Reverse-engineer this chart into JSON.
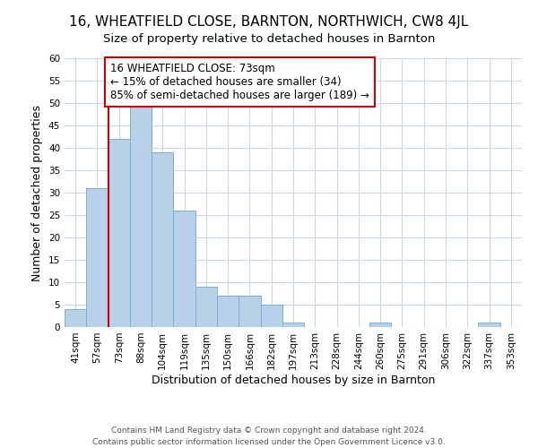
{
  "title": "16, WHEATFIELD CLOSE, BARNTON, NORTHWICH, CW8 4JL",
  "subtitle": "Size of property relative to detached houses in Barnton",
  "xlabel": "Distribution of detached houses by size in Barnton",
  "ylabel": "Number of detached properties",
  "footer_line1": "Contains HM Land Registry data © Crown copyright and database right 2024.",
  "footer_line2": "Contains public sector information licensed under the Open Government Licence v3.0.",
  "bin_labels": [
    "41sqm",
    "57sqm",
    "73sqm",
    "88sqm",
    "104sqm",
    "119sqm",
    "135sqm",
    "150sqm",
    "166sqm",
    "182sqm",
    "197sqm",
    "213sqm",
    "228sqm",
    "244sqm",
    "260sqm",
    "275sqm",
    "291sqm",
    "306sqm",
    "322sqm",
    "337sqm",
    "353sqm"
  ],
  "bar_heights": [
    4,
    31,
    42,
    50,
    39,
    26,
    9,
    7,
    7,
    5,
    1,
    0,
    0,
    0,
    1,
    0,
    0,
    0,
    0,
    1,
    0
  ],
  "bar_color": "#b8d0e8",
  "bar_edge_color": "#7aafd4",
  "highlight_bar_idx": 2,
  "highlight_color": "#cc0000",
  "annotation_line1": "16 WHEATFIELD CLOSE: 73sqm",
  "annotation_line2": "← 15% of detached houses are smaller (34)",
  "annotation_line3": "85% of semi-detached houses are larger (189) →",
  "annotation_box_edge": "#cc0000",
  "ylim_max": 60,
  "yticks": [
    0,
    5,
    10,
    15,
    20,
    25,
    30,
    35,
    40,
    45,
    50,
    55,
    60
  ],
  "title_fontsize": 11,
  "subtitle_fontsize": 9.5,
  "axis_label_fontsize": 9,
  "tick_fontsize": 7.5,
  "annotation_fontsize": 8.5,
  "footer_fontsize": 6.5,
  "background_color": "#ffffff",
  "grid_color": "#ccd8e8"
}
